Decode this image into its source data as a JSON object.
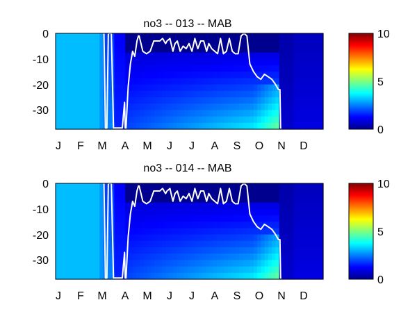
{
  "chart_data": [
    {
      "type": "heatmap",
      "title": "no3 -- 013 -- MAB",
      "months": [
        "J",
        "F",
        "M",
        "A",
        "M",
        "J",
        "J",
        "A",
        "S",
        "O",
        "N",
        "D"
      ],
      "y_ticks": [
        0,
        -10,
        -20,
        -30
      ],
      "ylim": [
        -37.5,
        0
      ],
      "xlim": [
        0,
        365
      ],
      "colorbar": {
        "ticks": [
          0,
          5,
          10
        ],
        "range": [
          0,
          10
        ],
        "colormap": "jet"
      },
      "line_color": "#ffffff",
      "mixed_layer_depth": {
        "day": [
          66,
          68,
          70,
          72,
          76,
          79,
          81,
          89,
          91,
          94,
          95,
          96,
          99,
          102,
          105,
          108,
          111,
          113,
          114,
          119,
          124,
          129,
          134,
          139,
          142,
          146,
          150,
          152,
          156,
          160,
          163,
          166,
          170,
          174,
          178,
          182,
          186,
          190,
          194,
          198,
          202,
          206,
          209,
          213,
          217,
          221,
          225,
          229,
          233,
          237,
          241,
          245,
          249,
          253,
          257,
          261,
          265,
          270,
          275,
          280,
          285,
          290,
          295,
          300,
          304,
          306,
          307,
          308
        ],
        "depth": [
          0,
          -37,
          -37,
          0,
          0,
          -37,
          -37,
          -37,
          -37,
          -27,
          -37,
          -37,
          -21,
          -12,
          -7,
          -9,
          -3,
          -1,
          -1,
          -7,
          -8,
          -7,
          -3,
          -3,
          -3,
          -2,
          -4,
          -3,
          -2,
          -7,
          -4,
          -3,
          -7,
          -5,
          -6,
          -4,
          -7,
          -2,
          -6,
          -3,
          -3,
          -7,
          -4,
          -6,
          -7,
          -8,
          -2,
          -8,
          -7,
          -2,
          -7,
          -8,
          -8,
          -1,
          0,
          -1,
          -12,
          -15,
          -17,
          -18,
          -16,
          -17,
          -18,
          -20,
          -22,
          -22,
          -37,
          -37
        ]
      }
    },
    {
      "type": "heatmap",
      "title": "no3 -- 014 -- MAB",
      "months": [
        "J",
        "F",
        "M",
        "A",
        "M",
        "J",
        "J",
        "A",
        "S",
        "O",
        "N",
        "D"
      ],
      "y_ticks": [
        0,
        -10,
        -20,
        -30
      ],
      "ylim": [
        -37.5,
        0
      ],
      "xlim": [
        0,
        365
      ],
      "colorbar": {
        "ticks": [
          0,
          5,
          10
        ],
        "range": [
          0,
          10
        ],
        "colormap": "jet"
      },
      "line_color": "#ffffff",
      "mixed_layer_depth": {
        "day": [
          66,
          68,
          70,
          72,
          76,
          79,
          81,
          89,
          91,
          94,
          95,
          96,
          99,
          102,
          105,
          108,
          111,
          113,
          114,
          119,
          124,
          129,
          134,
          139,
          142,
          146,
          150,
          152,
          156,
          160,
          163,
          166,
          170,
          174,
          178,
          182,
          186,
          190,
          194,
          198,
          202,
          206,
          209,
          213,
          217,
          221,
          225,
          229,
          233,
          237,
          241,
          245,
          249,
          253,
          257,
          261,
          265,
          270,
          275,
          280,
          285,
          290,
          295,
          300,
          304,
          306,
          307,
          308
        ],
        "depth": [
          0,
          -37,
          -37,
          0,
          0,
          -37,
          -37,
          -37,
          -37,
          -27,
          -37,
          -37,
          -21,
          -12,
          -7,
          -9,
          -3,
          -1,
          -1,
          -7,
          -8,
          -7,
          -3,
          -3,
          -3,
          -2,
          -4,
          -3,
          -2,
          -7,
          -4,
          -3,
          -7,
          -5,
          -6,
          -4,
          -7,
          -2,
          -6,
          -3,
          -3,
          -7,
          -4,
          -6,
          -7,
          -8,
          -2,
          -8,
          -7,
          -2,
          -7,
          -8,
          -8,
          -1,
          0,
          -1,
          -12,
          -15,
          -17,
          -18,
          -16,
          -17,
          -18,
          -20,
          -22,
          -22,
          -37,
          -37
        ]
      }
    }
  ]
}
